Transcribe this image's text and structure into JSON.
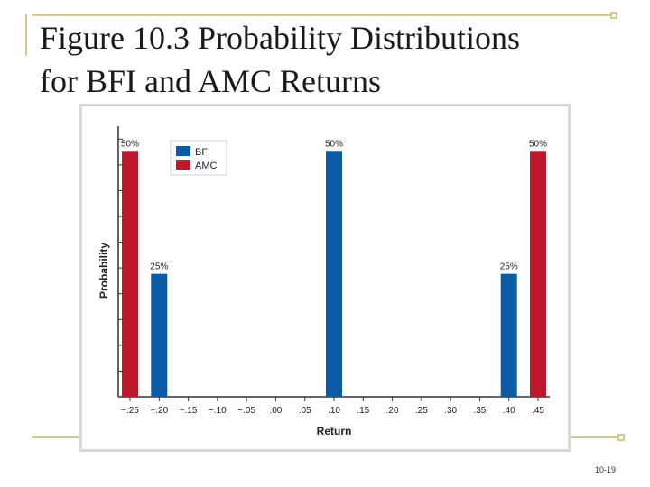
{
  "slide": {
    "title_line1": "Figure 10.3  Probability Distributions",
    "title_line2": "for BFI and AMC Returns",
    "page_number": "10-19"
  },
  "colors": {
    "accent": "#d8c98a",
    "bfi": "#0a5aa6",
    "amc": "#c0182b",
    "axis": "#333333"
  },
  "chart_data": {
    "type": "bar",
    "title": "",
    "xlabel": "Return",
    "ylabel": "Probability",
    "ylim": [
      0,
      0.55
    ],
    "x_ticks": [
      -0.25,
      -0.2,
      -0.15,
      -0.1,
      -0.05,
      0.0,
      0.05,
      0.1,
      0.15,
      0.2,
      0.25,
      0.3,
      0.35,
      0.4,
      0.45
    ],
    "x_tick_labels": [
      "−.25",
      "−.20",
      "−.15",
      "−.10",
      "−.05",
      ".00",
      ".05",
      ".10",
      ".15",
      ".20",
      ".25",
      ".30",
      ".35",
      ".40",
      ".45"
    ],
    "legend_position": "top-left",
    "series": [
      {
        "name": "BFI",
        "color": "#0a5aa6",
        "points": [
          {
            "x": -0.2,
            "y": 0.25,
            "label": "25%"
          },
          {
            "x": 0.1,
            "y": 0.5,
            "label": "50%"
          },
          {
            "x": 0.4,
            "y": 0.25,
            "label": "25%"
          }
        ]
      },
      {
        "name": "AMC",
        "color": "#c0182b",
        "points": [
          {
            "x": -0.25,
            "y": 0.5,
            "label": "50%"
          },
          {
            "x": 0.45,
            "y": 0.5,
            "label": "50%"
          }
        ]
      }
    ]
  }
}
